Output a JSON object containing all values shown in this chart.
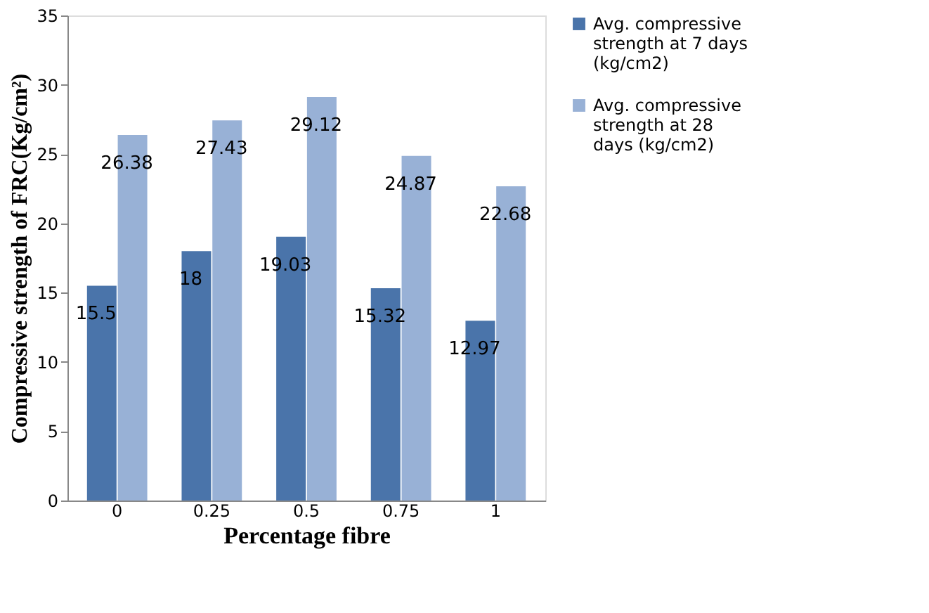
{
  "chart_data": {
    "type": "bar",
    "categories": [
      "0",
      "0.25",
      "0.5",
      "0.75",
      "1"
    ],
    "series": [
      {
        "name": "Avg. compressive strength at 7 days (kg/cm2)",
        "color": "#4a74aa",
        "values": [
          15.5,
          18,
          19.03,
          15.32,
          12.97
        ]
      },
      {
        "name": "Avg. compressive strength at 28 days (kg/cm2)",
        "color": "#98b1d6",
        "values": [
          26.38,
          27.43,
          29.12,
          24.87,
          22.68
        ]
      }
    ],
    "xlabel": "Percentage fibre",
    "ylabel": "Compressive strength of FRC(Kg/cm²)",
    "ylim": [
      0,
      35
    ],
    "yticks": [
      0,
      5,
      10,
      15,
      20,
      25,
      30,
      35
    ],
    "data_labels": true,
    "legend": "right",
    "grid": false
  }
}
